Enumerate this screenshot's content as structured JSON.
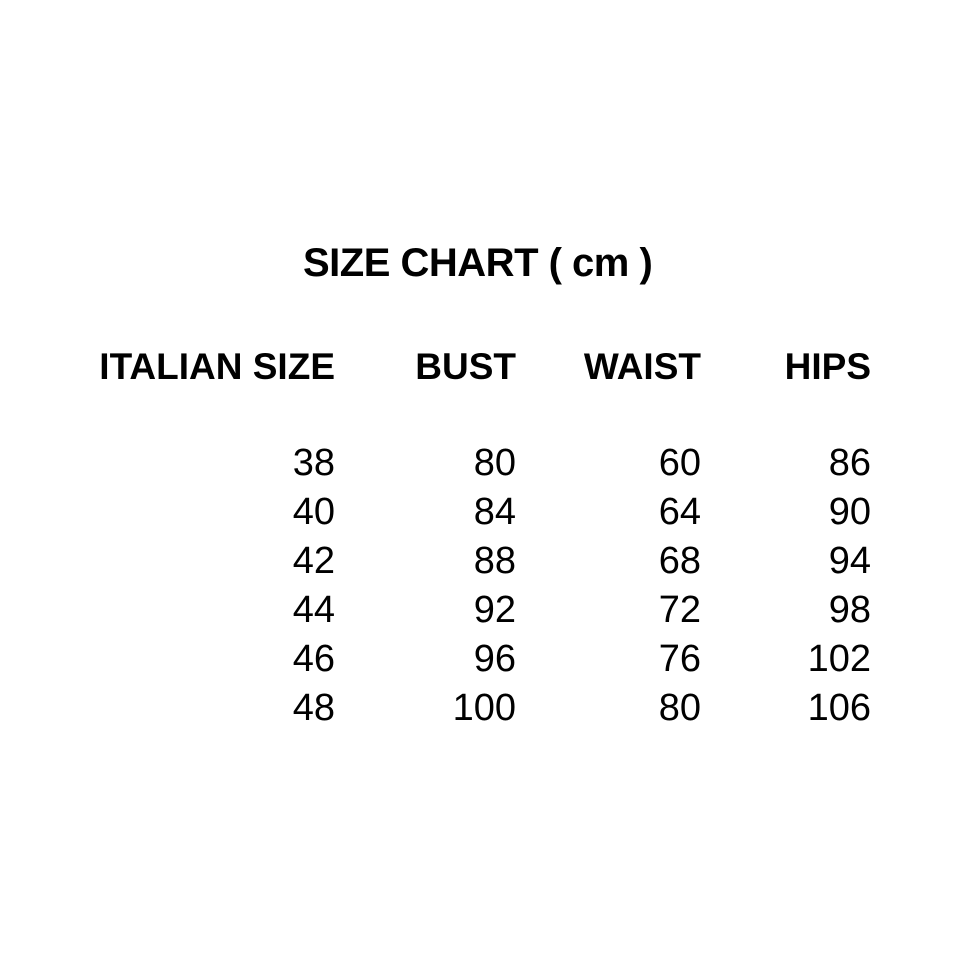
{
  "page": {
    "background_color": "#ffffff",
    "text_color": "#000000"
  },
  "chart_data": {
    "type": "table",
    "title": "SIZE CHART ( cm )",
    "unit": "cm",
    "columns": [
      "ITALIAN SIZE",
      "BUST",
      "WAIST",
      "HIPS"
    ],
    "rows": [
      [
        "38",
        "80",
        "60",
        "86"
      ],
      [
        "40",
        "84",
        "64",
        "90"
      ],
      [
        "42",
        "88",
        "68",
        "94"
      ],
      [
        "44",
        "92",
        "72",
        "98"
      ],
      [
        "46",
        "96",
        "76",
        "102"
      ],
      [
        "48",
        "100",
        "80",
        "106"
      ]
    ]
  }
}
